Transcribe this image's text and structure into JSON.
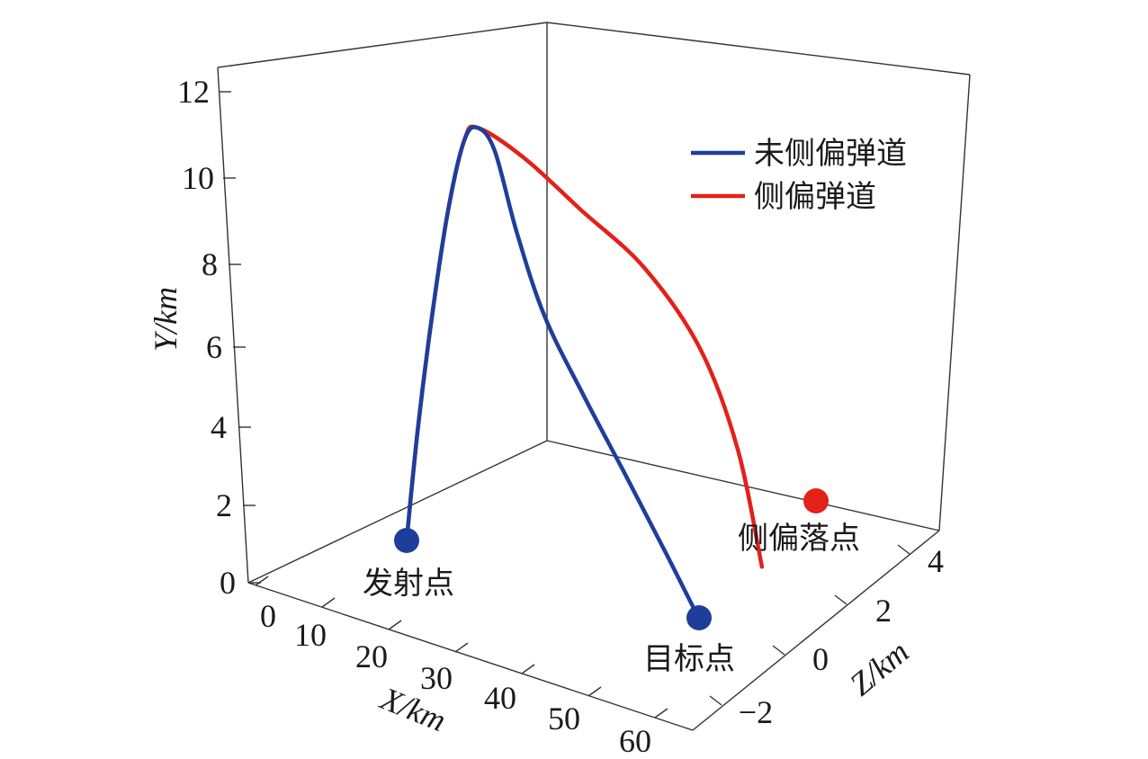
{
  "chart_data": {
    "type": "line3d",
    "xlabel": "X/km",
    "ylabel": "Y/km",
    "zlabel": "Z/km",
    "x_ticks": [
      "0",
      "10",
      "20",
      "30",
      "40",
      "50",
      "60"
    ],
    "y_ticks": [
      "0",
      "2",
      "4",
      "6",
      "8",
      "10",
      "12"
    ],
    "z_ticks": [
      "−2",
      "0",
      "2",
      "4"
    ],
    "xlim": [
      0,
      65
    ],
    "ylim": [
      0,
      12.5
    ],
    "zlim": [
      -3,
      5
    ],
    "grid": false,
    "legend_position": "top-right",
    "series": [
      {
        "name": "未侧偏弹道",
        "color": "#1f3e9c",
        "points": [
          {
            "x": 0,
            "y": 0,
            "z": 0
          },
          {
            "x": 2,
            "y": 3,
            "z": 0
          },
          {
            "x": 4.5,
            "y": 6,
            "z": 0
          },
          {
            "x": 7.5,
            "y": 9,
            "z": 0
          },
          {
            "x": 10.5,
            "y": 11,
            "z": 0
          },
          {
            "x": 13,
            "y": 11.4,
            "z": 0
          },
          {
            "x": 16,
            "y": 10.9,
            "z": 0
          },
          {
            "x": 20,
            "y": 8.9,
            "z": 0
          },
          {
            "x": 25,
            "y": 6.9,
            "z": 0
          },
          {
            "x": 32,
            "y": 5.1,
            "z": 0
          },
          {
            "x": 40,
            "y": 3.2,
            "z": 0
          },
          {
            "x": 47,
            "y": 1.5,
            "z": 0
          },
          {
            "x": 53,
            "y": 0,
            "z": 0
          }
        ]
      },
      {
        "name": "侧偏弹道",
        "color": "#e32119",
        "points": [
          {
            "x": 0,
            "y": 0,
            "z": 0
          },
          {
            "x": 2,
            "y": 3,
            "z": 0
          },
          {
            "x": 4.5,
            "y": 6,
            "z": 0
          },
          {
            "x": 7.5,
            "y": 9,
            "z": 0
          },
          {
            "x": 10.5,
            "y": 11,
            "z": 0
          },
          {
            "x": 13,
            "y": 11.4,
            "z": 0
          },
          {
            "x": 18,
            "y": 10.5,
            "z": 0.8
          },
          {
            "x": 24,
            "y": 9.0,
            "z": 1.8
          },
          {
            "x": 32,
            "y": 7.5,
            "z": 2.6
          },
          {
            "x": 40,
            "y": 5.5,
            "z": 3.1
          },
          {
            "x": 46,
            "y": 3.0,
            "z": 3.3
          },
          {
            "x": 50,
            "y": 0,
            "z": 3.4
          }
        ]
      }
    ],
    "annotations": [
      {
        "text": "发射点",
        "at": "launch"
      },
      {
        "text": "目标点",
        "at": "target"
      },
      {
        "text": "侧偏落点",
        "at": "deviated-landing"
      }
    ]
  }
}
